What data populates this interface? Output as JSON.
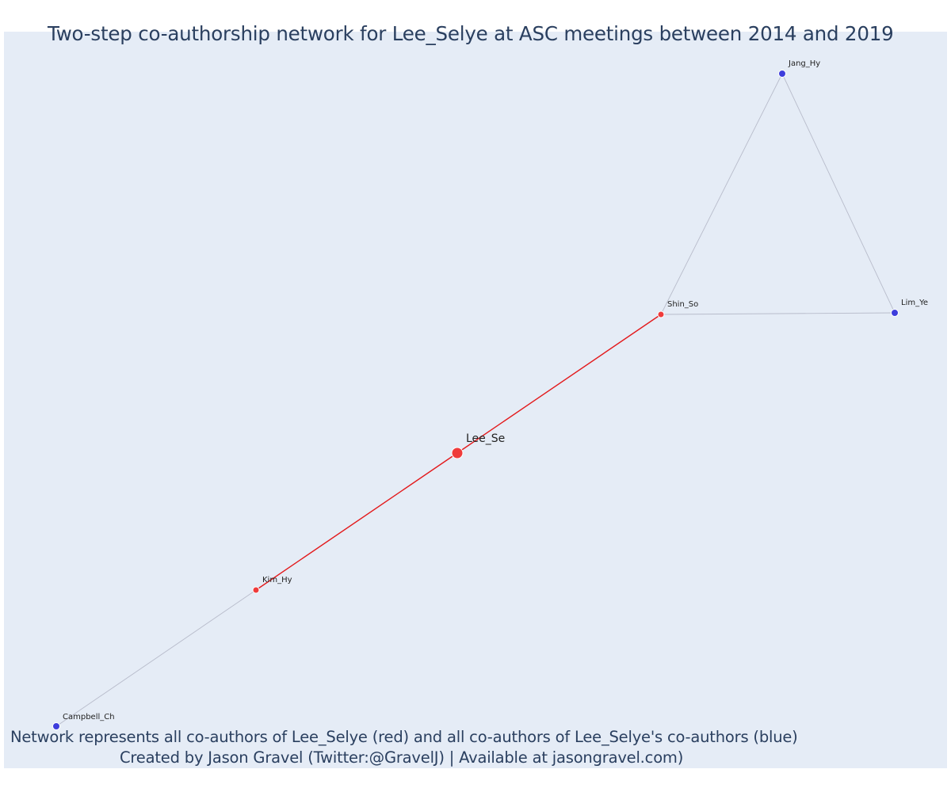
{
  "title": "Two-step co-authorship network for Lee_Selye at ASC meetings between 2014 and 2019",
  "caption": {
    "line1": "Network represents all co-authors of Lee_Selye (red) and all co-authors of Lee_Selye's co-authors (blue)",
    "line2": "Created by Jason Gravel (Twitter:@GravelJ) | Available at jasongravel.com)"
  },
  "colors": {
    "background": "#e5ecf6",
    "text": "#2a3f5f",
    "red_node": "#ef3b3b",
    "blue_node": "#3d3ddc",
    "red_edge": "#e31a1c",
    "gray_edge": "#b8bccb"
  },
  "nodes": [
    {
      "id": "Lee_Se",
      "label": "Lee_Se",
      "group": "focal"
    },
    {
      "id": "Shin_So",
      "label": "Shin_So",
      "group": "coauthor"
    },
    {
      "id": "Kim_Hy",
      "label": "Kim_Hy",
      "group": "coauthor"
    },
    {
      "id": "Jang_Hy",
      "label": "Jang_Hy",
      "group": "second-step"
    },
    {
      "id": "Lim_Ye",
      "label": "Lim_Ye",
      "group": "second-step"
    },
    {
      "id": "Campbell_Ch",
      "label": "Campbell_Ch",
      "group": "second-step"
    }
  ],
  "edges": [
    {
      "source": "Lee_Se",
      "target": "Shin_So",
      "type": "direct"
    },
    {
      "source": "Lee_Se",
      "target": "Kim_Hy",
      "type": "direct"
    },
    {
      "source": "Shin_So",
      "target": "Jang_Hy",
      "type": "second"
    },
    {
      "source": "Shin_So",
      "target": "Lim_Ye",
      "type": "second"
    },
    {
      "source": "Jang_Hy",
      "target": "Lim_Ye",
      "type": "second"
    },
    {
      "source": "Kim_Hy",
      "target": "Campbell_Ch",
      "type": "second"
    }
  ]
}
